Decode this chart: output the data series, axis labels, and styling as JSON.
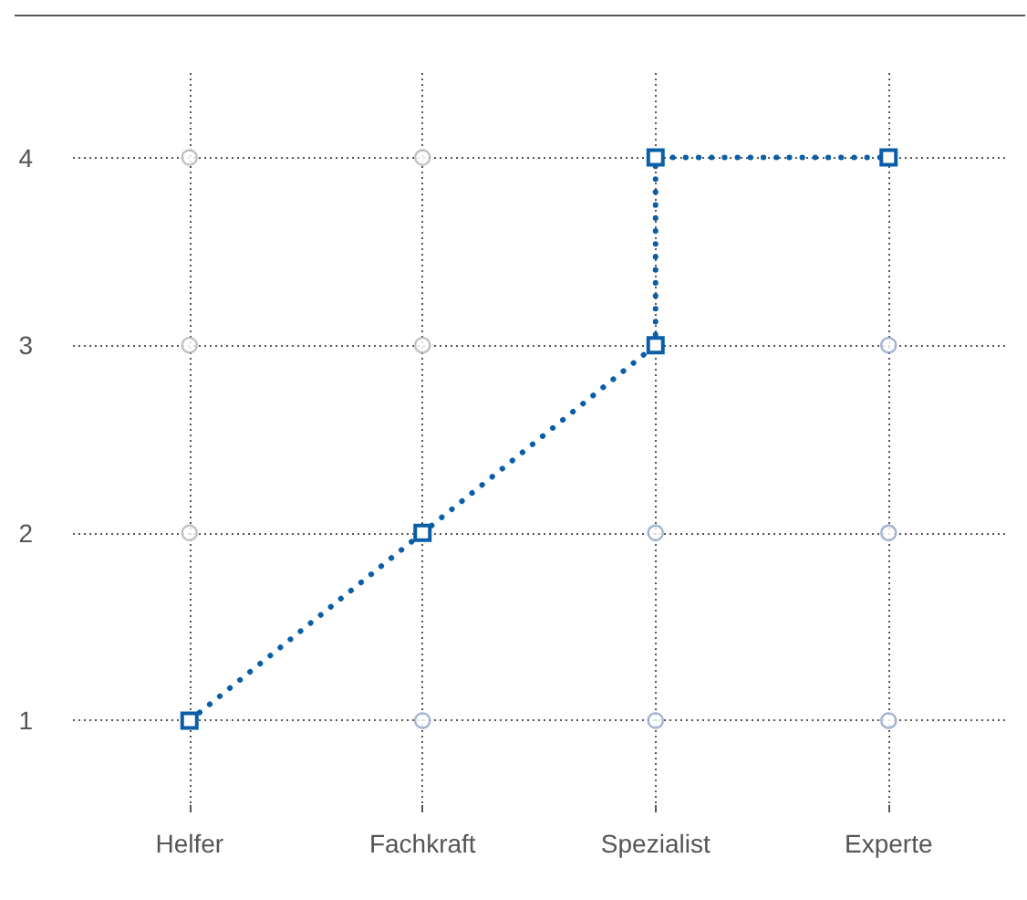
{
  "chart_data": {
    "type": "line",
    "categories": [
      "Helfer",
      "Fachkraft",
      "Spezialist",
      "Experte"
    ],
    "ylim": [
      0.55,
      4.45
    ],
    "yticks": [
      1,
      2,
      3,
      4
    ],
    "grid": true,
    "series": [
      {
        "type": "scatter",
        "color": "#b3b3b3",
        "marker": "circle",
        "x": [
          "Helfer",
          "Helfer",
          "Helfer",
          "Fachkraft",
          "Fachkraft"
        ],
        "values": [
          2,
          3,
          4,
          3,
          4
        ]
      },
      {
        "type": "scatter",
        "color": "#8da0c8",
        "marker": "circle",
        "x": [
          "Fachkraft",
          "Spezialist",
          "Spezialist",
          "Experte",
          "Experte",
          "Experte"
        ],
        "values": [
          1,
          1,
          2,
          1,
          2,
          3
        ]
      },
      {
        "color": "#0a5ea8",
        "marker": "square",
        "line_style": "dotted",
        "x": [
          "Helfer",
          "Fachkraft",
          "Spezialist",
          "Spezialist",
          "Experte"
        ],
        "values": [
          1,
          2,
          3,
          4,
          4
        ]
      }
    ]
  }
}
